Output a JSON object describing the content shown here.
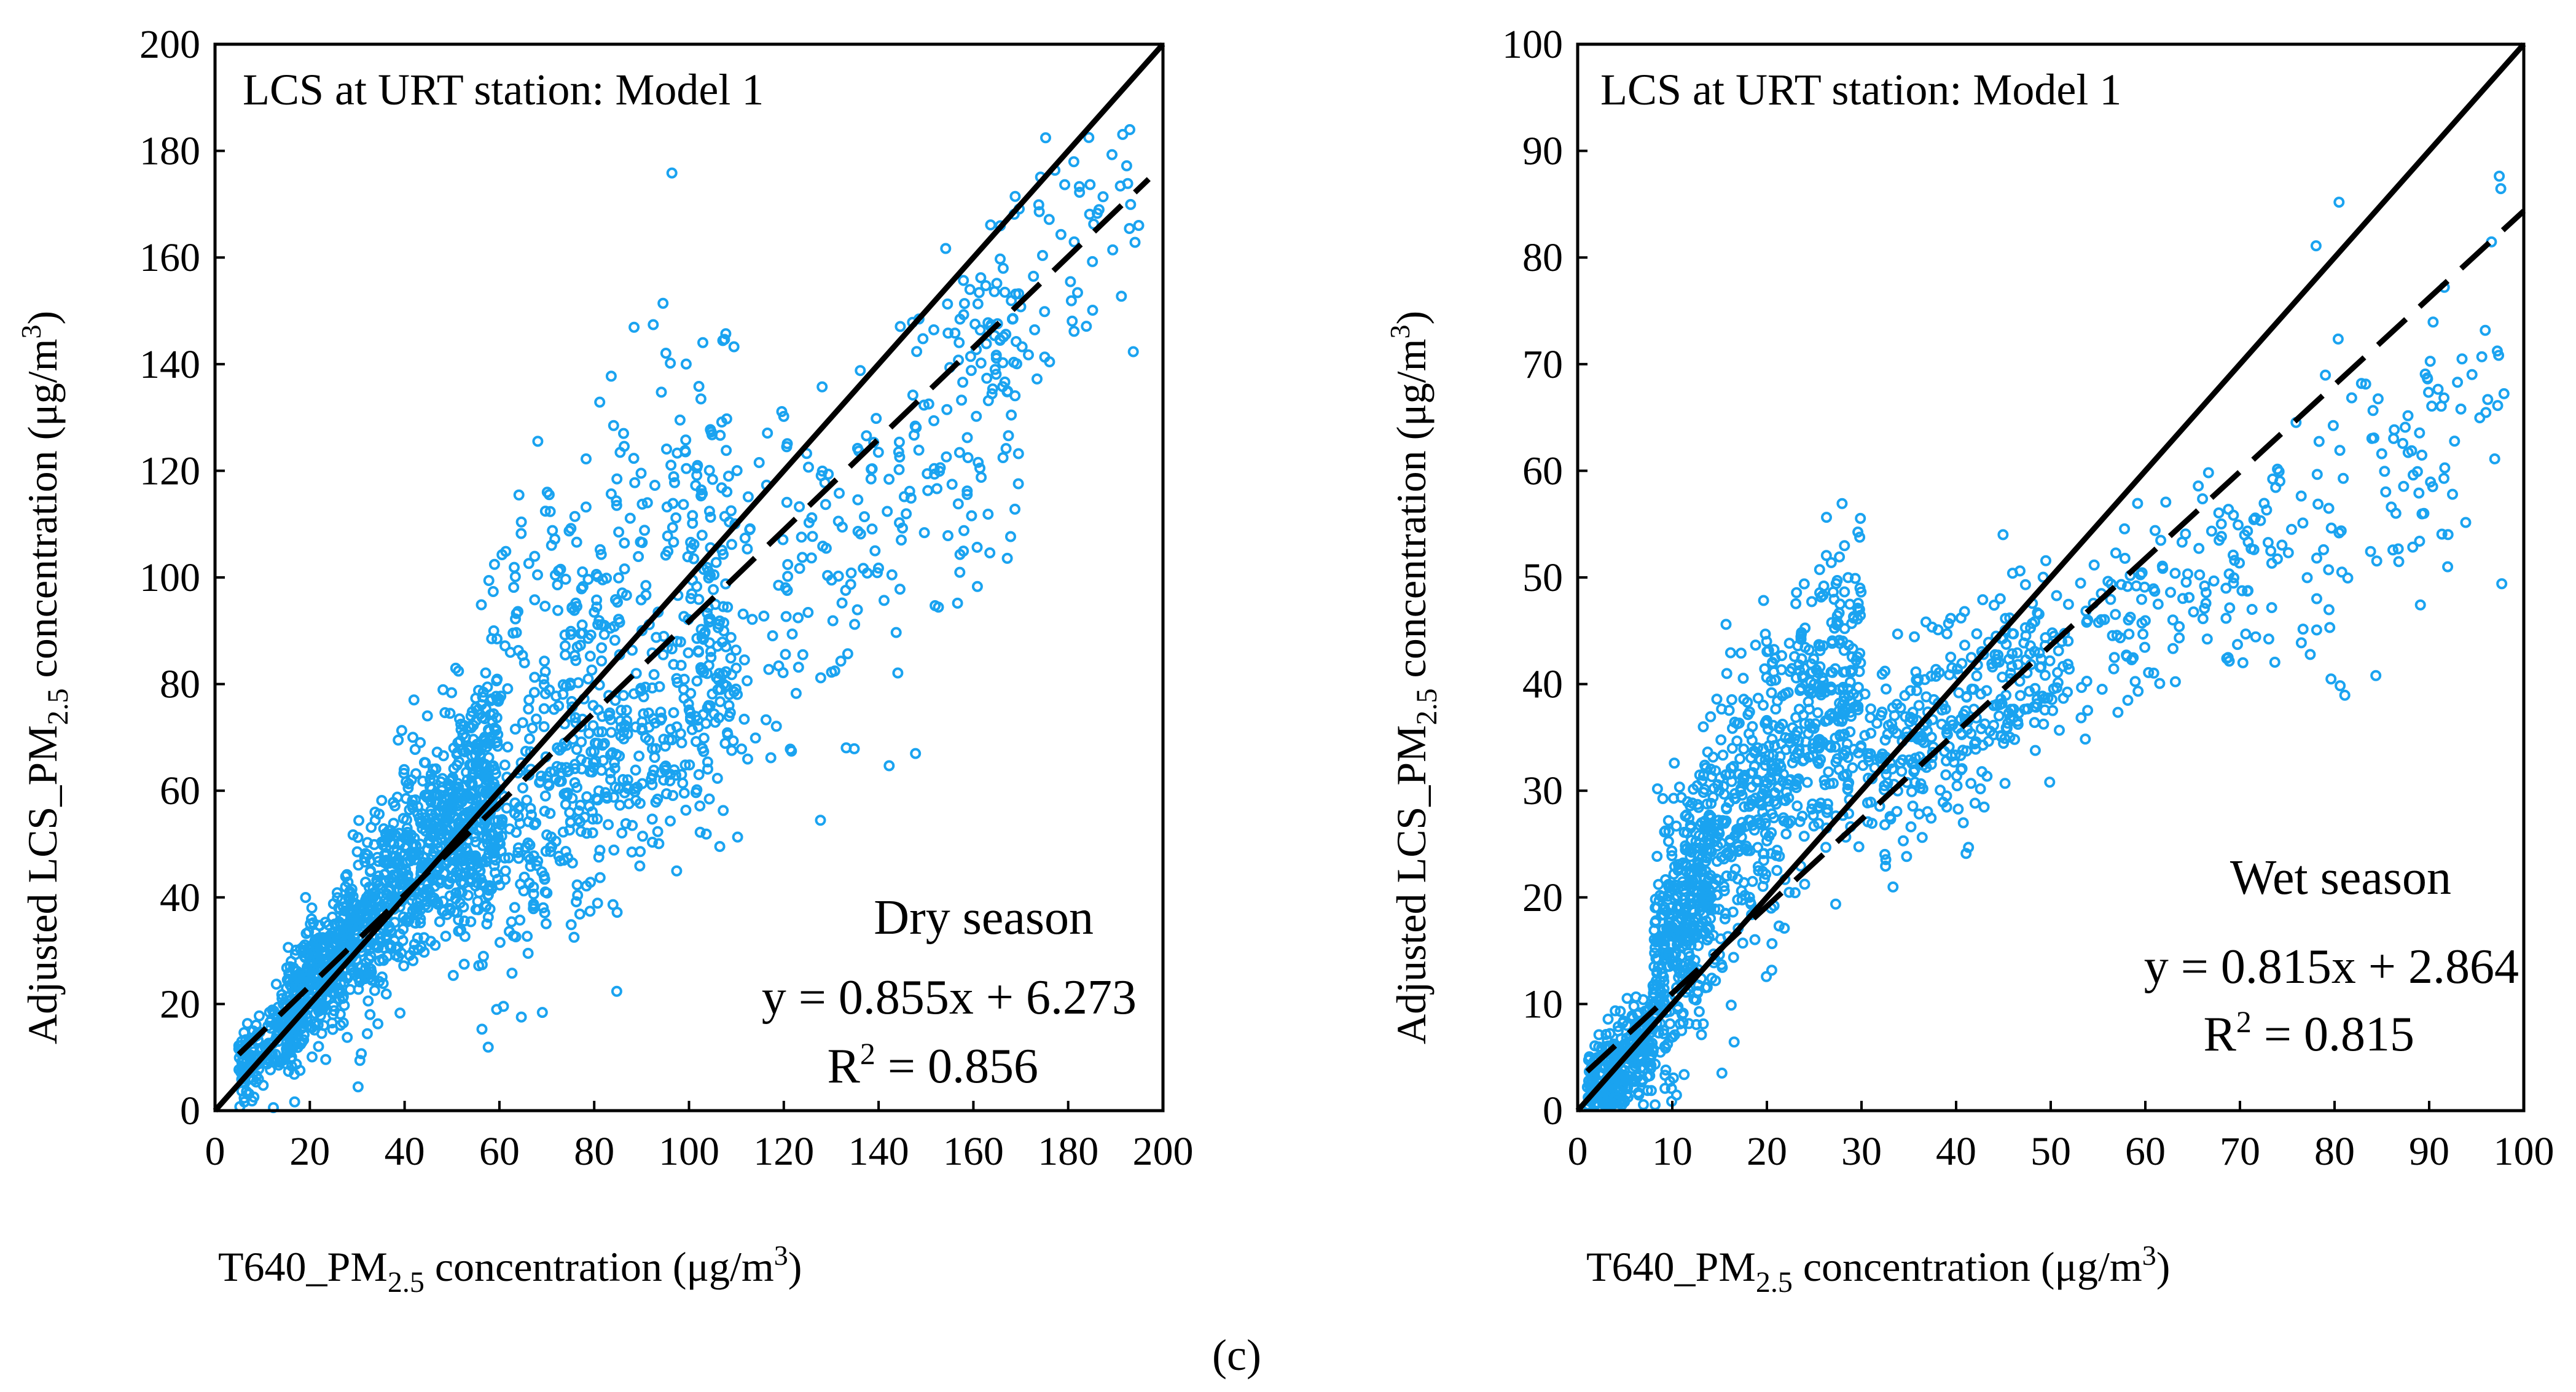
{
  "figure": {
    "caption": "(c)"
  },
  "chart_data": [
    {
      "type": "scatter",
      "id": "dry",
      "title": "LCS at URT station: Model 1",
      "xlabel": {
        "pre": "T640_PM",
        "sub": "2.5",
        "post": " concentration (μg/m",
        "sup": "3",
        "end": ")"
      },
      "ylabel": {
        "pre": "Adjusted  LCS_PM",
        "sub": "2.5",
        "post": " concentration (μg/m",
        "sup": "3",
        "end": ")"
      },
      "xlim": [
        0,
        200
      ],
      "ylim": [
        0,
        200
      ],
      "xticks": [
        0,
        20,
        40,
        60,
        80,
        100,
        120,
        140,
        160,
        180,
        200
      ],
      "yticks": [
        0,
        20,
        40,
        60,
        80,
        100,
        120,
        140,
        160,
        180,
        200
      ],
      "xtick_labels": [
        "0",
        "20",
        "40",
        "60",
        "80",
        "100",
        "120",
        "140",
        "160",
        "180",
        "200"
      ],
      "ytick_labels": [
        "0",
        "20",
        "40",
        "60",
        "80",
        "100",
        "120",
        "140",
        "160",
        "180",
        "200"
      ],
      "season": "Dry season",
      "equation": "y = 0.855x + 6.273",
      "r2": {
        "pre": "R",
        "sup": "2",
        "post": " = 0.856"
      },
      "fit": {
        "slope": 0.855,
        "intercept": 6.273,
        "x_range": [
          5,
          197
        ]
      },
      "one_to_one": {
        "x_range": [
          0,
          200
        ]
      },
      "scatter_profile": [
        {
          "x": [
            5,
            15
          ],
          "a": 0.8,
          "b": 3,
          "sd": 4,
          "n": 140
        },
        {
          "x": [
            15,
            30
          ],
          "a": 1.15,
          "b": 0,
          "sd": 6,
          "n": 450
        },
        {
          "x": [
            30,
            60
          ],
          "a": 1.05,
          "b": 2,
          "sd": 10,
          "n": 750
        },
        {
          "x": [
            55,
            110
          ],
          "a": 0.92,
          "b": 8,
          "sd": 22,
          "n": 480
        },
        {
          "x": [
            50,
            110
          ],
          "a": 0.62,
          "b": 8,
          "sd": 8,
          "n": 250
        },
        {
          "x": [
            100,
            170
          ],
          "a": 0.8,
          "b": 2,
          "sd": 20,
          "n": 260
        },
        {
          "x": [
            160,
            195
          ],
          "a": 0.85,
          "b": 8,
          "sd": 10,
          "n": 80
        }
      ],
      "point_color": "#1aa3f0"
    },
    {
      "type": "scatter",
      "id": "wet",
      "title": "LCS at URT station: Model 1",
      "xlabel": {
        "pre": "T640_PM",
        "sub": "2.5",
        "post": " concentration (μg/m",
        "sup": "3",
        "end": ")"
      },
      "ylabel": {
        "pre": "Adjusted  LCS_PM",
        "sub": "2.5",
        "post": " concentration (μg/m",
        "sup": "3",
        "end": ")"
      },
      "xlim": [
        0,
        100
      ],
      "ylim": [
        0,
        100
      ],
      "xticks": [
        0,
        10,
        20,
        30,
        40,
        50,
        60,
        70,
        80,
        90,
        100
      ],
      "yticks": [
        0,
        10,
        20,
        30,
        40,
        50,
        60,
        70,
        80,
        90,
        100
      ],
      "xtick_labels": [
        "0",
        "10",
        "20",
        "30",
        "40",
        "50",
        "60",
        "70",
        "80",
        "90",
        "100"
      ],
      "ytick_labels": [
        "0",
        "10",
        "20",
        "30",
        "40",
        "50",
        "60",
        "70",
        "80",
        "90",
        "100"
      ],
      "season": "Wet season",
      "equation": "y = 0.815x + 2.864",
      "r2": {
        "pre": "R",
        "sup": "2",
        "post": " = 0.815"
      },
      "fit": {
        "slope": 0.815,
        "intercept": 2.864,
        "x_range": [
          1,
          100
        ]
      },
      "one_to_one": {
        "x_range": [
          0,
          100
        ]
      },
      "scatter_profile": [
        {
          "x": [
            1,
            8
          ],
          "a": 0.9,
          "b": 0,
          "sd": 2.5,
          "n": 300
        },
        {
          "x": [
            8,
            15
          ],
          "a": 1.6,
          "b": 0,
          "sd": 6,
          "n": 420
        },
        {
          "x": [
            15,
            30
          ],
          "a": 1.1,
          "b": 9,
          "sd": 7,
          "n": 520
        },
        {
          "x": [
            30,
            50
          ],
          "a": 0.5,
          "b": 17,
          "sd": 5,
          "n": 320
        },
        {
          "x": [
            50,
            75
          ],
          "a": 0.5,
          "b": 17,
          "sd": 5,
          "n": 160
        },
        {
          "x": [
            75,
            98
          ],
          "a": 0.6,
          "b": 8,
          "sd": 8,
          "n": 110
        }
      ],
      "point_color": "#1aa3f0"
    }
  ]
}
